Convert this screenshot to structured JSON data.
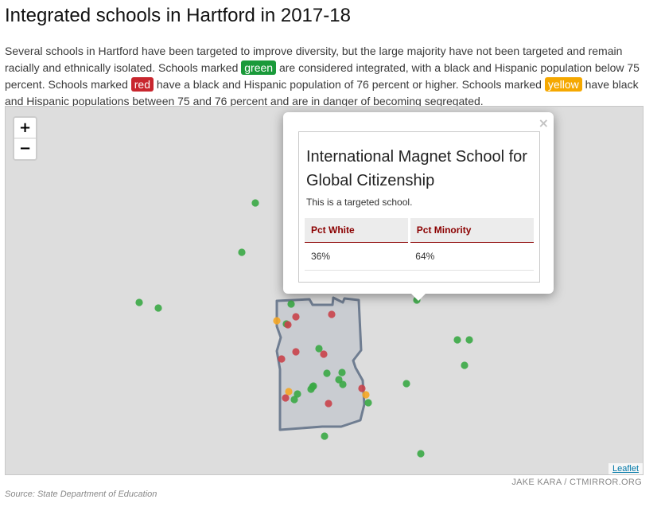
{
  "title": "Integrated schools in Hartford in 2017-18",
  "intro": {
    "part1": "Several schools in Hartford have been targeted to improve diversity, but the large majority have not been targeted and remain racially and ethnically isolated. Schools marked ",
    "green_tag": "green",
    "part2": " are considered integrated, with a black and Hispanic population below 75 percent. Schools marked ",
    "red_tag": "red",
    "part3": " have a black and Hispanic population of 76 percent or higher. Schools marked ",
    "yellow_tag": "yellow",
    "part4": " have black and Hispanic populations between 75 and 76 percent and are in danger of becoming segregated."
  },
  "map": {
    "zoom_in": "+",
    "zoom_out": "−",
    "attribution": "Leaflet",
    "colors": {
      "background": "#dddddd",
      "boundary_fill": "#c5c9cf",
      "boundary_stroke": "#6f7d91",
      "integrated": "#3aa845",
      "segregated": "#c9434a",
      "at_risk": "#f5a623"
    },
    "popup": {
      "close": "×",
      "title": "International Magnet School for Global Citizenship",
      "note": "This is a targeted school.",
      "columns": [
        "Pct White",
        "Pct Minority"
      ],
      "values": [
        "36%",
        "64%"
      ]
    }
  },
  "credit": "JAKE KARA / CTMIRROR.ORG",
  "source": "Source: State Department of Education"
}
